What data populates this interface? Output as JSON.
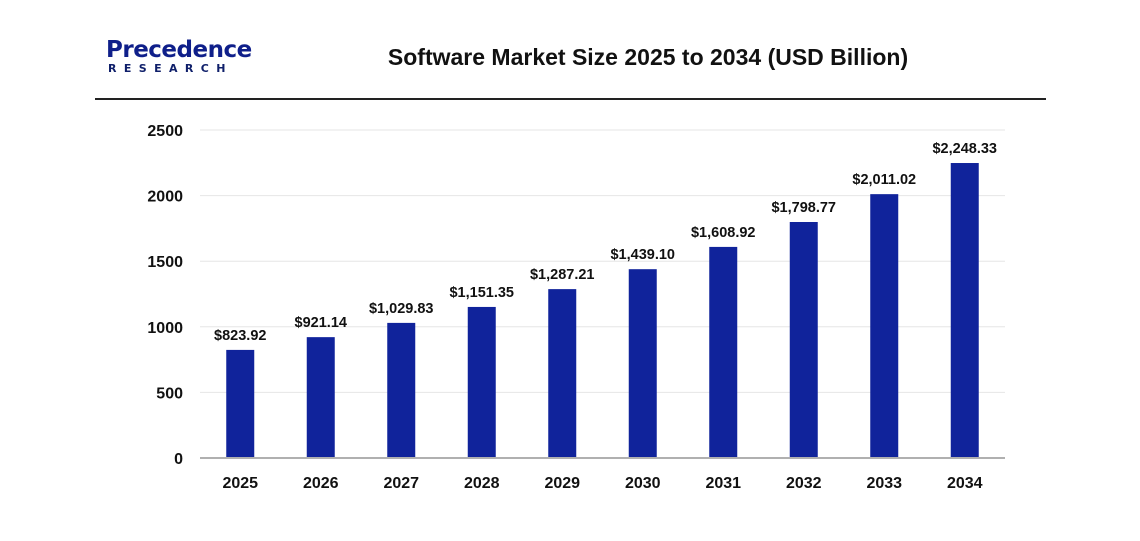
{
  "logo": {
    "line1": "Precedence",
    "line2": "RESEARCH"
  },
  "chart_data": {
    "type": "bar",
    "title": "Software Market Size 2025 to 2034 (USD Billion)",
    "xlabel": "",
    "ylabel": "",
    "categories": [
      "2025",
      "2026",
      "2027",
      "2028",
      "2029",
      "2030",
      "2031",
      "2032",
      "2033",
      "2034"
    ],
    "values": [
      823.92,
      921.14,
      1029.83,
      1151.35,
      1287.21,
      1439.1,
      1608.92,
      1798.77,
      2011.02,
      2248.33
    ],
    "data_labels": [
      "$823.92",
      "$921.14",
      "$1,029.83",
      "$1,151.35",
      "$1,287.21",
      "$1,439.10",
      "$1,608.92",
      "$1,798.77",
      "$2,011.02",
      "$2,248.33"
    ],
    "ylim": [
      0,
      2500
    ],
    "yticks": [
      0,
      500,
      1000,
      1500,
      2000,
      2500
    ],
    "grid": true,
    "bar_color": "#10239b"
  }
}
